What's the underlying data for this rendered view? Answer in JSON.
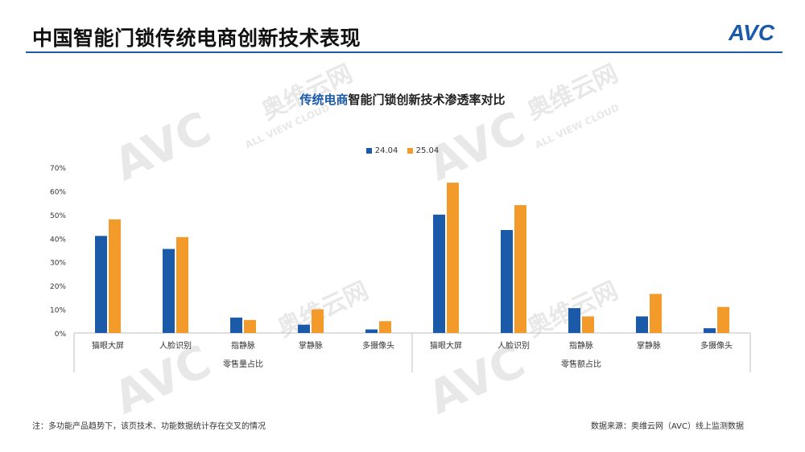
{
  "slide_title": "中国智能门锁传统电商创新技术表现",
  "logo_text": "AVC",
  "chart_title_highlight": "传统电商",
  "chart_title_rest": "智能门锁创新技术渗透率对比",
  "footnote": "注：多功能产品趋势下，该页技术、功能数据统计存在交叉的情况",
  "source": "数据来源：奥维云网（AVC）线上监测数据",
  "watermark_cn": "奥维云网",
  "watermark_en": "ALL VIEW CLOUD",
  "colors": {
    "series1": "#1a5aa8",
    "series2": "#f39b2a",
    "accent": "#1a5aa8"
  },
  "chart_data": {
    "type": "bar",
    "title": "传统电商智能门锁创新技术渗透率对比",
    "legend_position": "top",
    "ylim": [
      0,
      70
    ],
    "y_ticks": [
      "0%",
      "10%",
      "20%",
      "30%",
      "40%",
      "50%",
      "60%",
      "70%"
    ],
    "groups": [
      "零售量占比",
      "零售额占比"
    ],
    "categories": [
      "猫眼大屏",
      "人脸识别",
      "指静脉",
      "掌静脉",
      "多摄像头",
      "猫眼大屏",
      "人脸识别",
      "指静脉",
      "掌静脉",
      "多摄像头"
    ],
    "series": [
      {
        "name": "24.04",
        "values": [
          41,
          35.5,
          6.5,
          3.5,
          1.5,
          50,
          43.5,
          10.5,
          7,
          2
        ]
      },
      {
        "name": "25.04",
        "values": [
          48,
          40.5,
          5.5,
          10,
          5,
          63.5,
          54,
          7,
          16.5,
          11
        ]
      }
    ]
  }
}
